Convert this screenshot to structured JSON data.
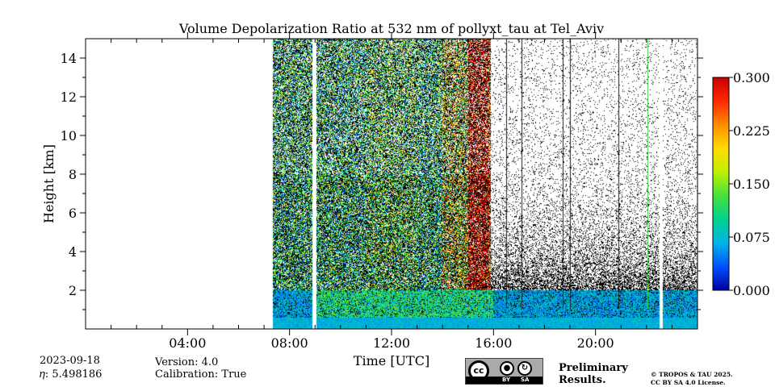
{
  "chart_data": {
    "type": "heatmap",
    "title": "Volume Depolarization Ratio at 532 nm of pollyxt_tau at Tel_Aviv",
    "xlabel": "Time [UTC]",
    "ylabel": "Height [km]",
    "xlim": [
      0,
      24
    ],
    "ylim": [
      0,
      15
    ],
    "x_tick_labels": [
      "04:00",
      "08:00",
      "12:00",
      "16:00",
      "20:00"
    ],
    "x_tick_values": [
      4,
      8,
      12,
      16,
      20
    ],
    "y_ticks": [
      2,
      4,
      6,
      8,
      10,
      12,
      14
    ],
    "colorbar": {
      "min": 0.0,
      "max": 0.3,
      "tick_labels": [
        "0.000",
        "0.075",
        "0.150",
        "0.225",
        "0.300"
      ],
      "tick_values": [
        0.0,
        0.075,
        0.15,
        0.225,
        0.3
      ],
      "colormap": [
        "#0000a0",
        "#0050ff",
        "#00b4e6",
        "#00d28c",
        "#46e13c",
        "#bef000",
        "#ffdc00",
        "#ff8c00",
        "#ff2800",
        "#c80000"
      ]
    },
    "data_start_hour": 7.35,
    "data_gaps_hours": [
      [
        8.9,
        9.05
      ],
      [
        22.5,
        22.65
      ]
    ],
    "colors": {
      "near_surface": "#1e78dc",
      "speckle": "#000000"
    }
  },
  "info": {
    "date": "2023-09-18",
    "eta": "𝜂: 5.498186",
    "version": "Version: 4.0",
    "calibration": "Calibration: True",
    "preliminary": "Preliminary\nResults.",
    "copyright_line1": "© TROPOS & TAU 2025.",
    "copyright_line2": "CC BY SA 4.0 License.",
    "preliminary_color": "#e8322e"
  },
  "license_badge": {
    "cc": "cc",
    "by": "BY",
    "sa": "SA"
  }
}
